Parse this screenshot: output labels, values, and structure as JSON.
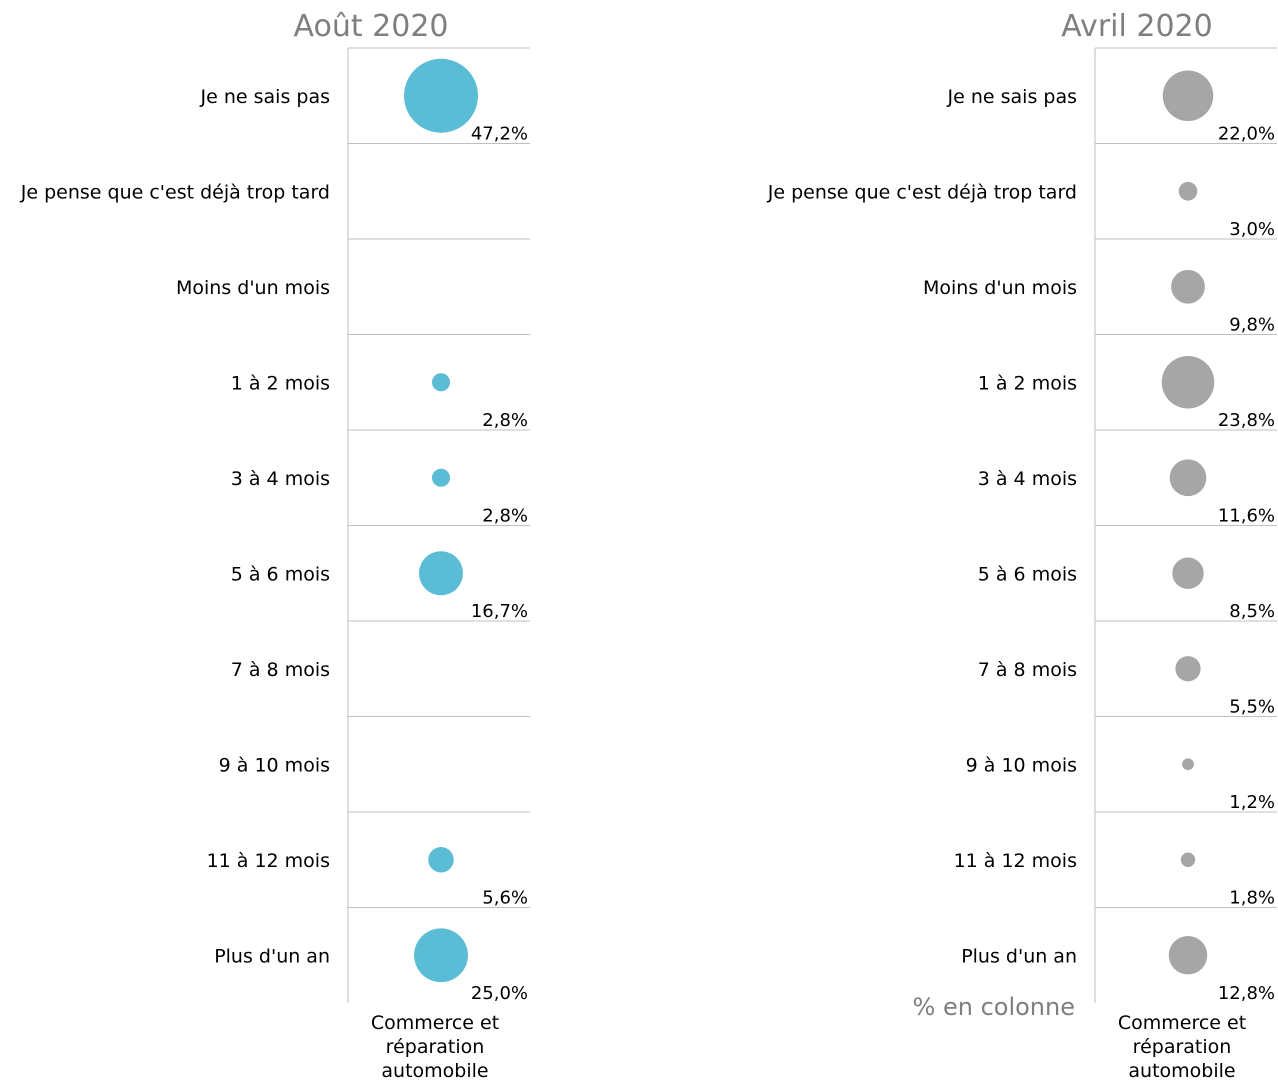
{
  "chart_data": [
    {
      "type": "bubble",
      "title": "Août 2020",
      "column_label": [
        "Commerce et",
        "réparation",
        "automobile"
      ],
      "categories": [
        "Je ne sais pas",
        "Je pense que c'est déjà trop tard",
        "Moins d'un mois",
        "1 à 2 mois",
        "3 à 4 mois",
        "5 à 6 mois",
        "7 à 8 mois",
        "9 à 10 mois",
        "11 à 12 mois",
        "Plus d'un an"
      ],
      "values": [
        47.2,
        null,
        null,
        2.8,
        2.8,
        16.7,
        null,
        null,
        5.6,
        25.0
      ],
      "value_labels": [
        "47,2%",
        "",
        "",
        "2,8%",
        "2,8%",
        "16,7%",
        "",
        "",
        "5,6%",
        "25,0%"
      ],
      "color": "#5bbcd6"
    },
    {
      "type": "bubble",
      "title": "Avril 2020",
      "column_label": [
        "Commerce et",
        "réparation",
        "automobile"
      ],
      "note": "% en colonne",
      "categories": [
        "Je ne sais pas",
        "Je pense que c'est déjà trop tard",
        "Moins d'un mois",
        "1 à 2 mois",
        "3 à 4 mois",
        "5 à 6 mois",
        "7 à 8 mois",
        "9 à 10 mois",
        "11 à 12 mois",
        "Plus d'un an"
      ],
      "values": [
        22.0,
        3.0,
        9.8,
        23.8,
        11.6,
        8.5,
        5.5,
        1.2,
        1.8,
        12.8
      ],
      "value_labels": [
        "22,0%",
        "3,0%",
        "9,8%",
        "23,8%",
        "11,6%",
        "8,5%",
        "5,5%",
        "1,2%",
        "1,8%",
        "12,8%"
      ],
      "color": "#a6a6a6"
    }
  ]
}
